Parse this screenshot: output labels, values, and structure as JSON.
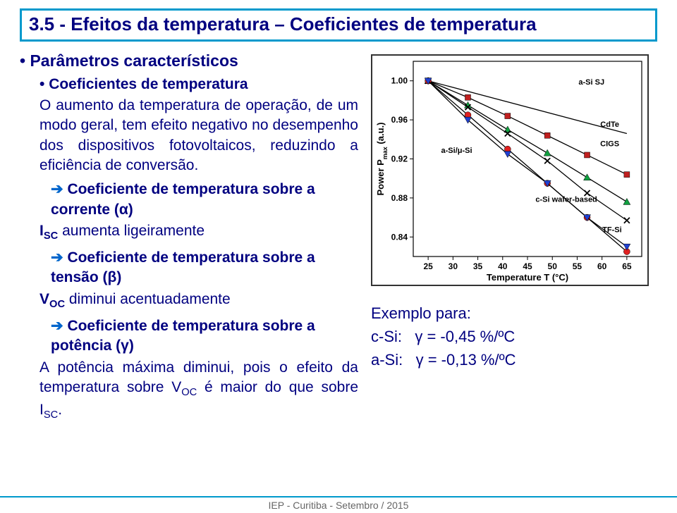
{
  "title": "3.5 - Efeitos da temperatura – Coeficientes de temperatura",
  "bullets": {
    "l1": "Parâmetros característicos",
    "l2": "Coeficientes de temperatura",
    "p1": "O aumento da temperatura de operação, de um modo geral, tem efeito negativo no desempenho dos dispositivos fotovoltaicos, reduzindo a eficiência de conversão.",
    "arrow1": "Coeficiente de temperatura sobre a corrente (α)",
    "sub1_a": "I",
    "sub1_b": "SC",
    "sub1_c": " aumenta ligeiramente",
    "arrow2": "Coeficiente de temperatura sobre a tensão (β)",
    "sub2_a": "V",
    "sub2_b": "OC",
    "sub2_c": " diminui acentuadamente",
    "arrow3": "Coeficiente de temperatura sobre a potência (γ)",
    "sub3": "A potência máxima diminui, pois o efeito da temperatura sobre V",
    "sub3_b": "OC",
    "sub3_c": " é maior do que sobre I",
    "sub3_d": "SC",
    "sub3_e": "."
  },
  "example": {
    "heading": "Exemplo para:",
    "line1_label": "c-Si:",
    "line1_val": "γ = -0,45 %/ºC",
    "line2_label": "a-Si:",
    "line2_val": "γ = -0,13 %/ºC"
  },
  "footer": "IEP  -  Curitiba  -  Setembro / 2015",
  "chart": {
    "xlabel": "Temperature T (°C)",
    "ylabel": "Power Pmax (a.u.)",
    "xlim": [
      22,
      68
    ],
    "ylim": [
      0.82,
      1.02
    ],
    "xticks": [
      25,
      30,
      35,
      40,
      45,
      50,
      55,
      60,
      65
    ],
    "yticks": [
      0.84,
      0.88,
      0.92,
      0.96,
      1.0
    ],
    "tick_fontsize": 12,
    "label_fontsize": 13,
    "background": "#ffffff",
    "axis_color": "#000000",
    "legend_fontsize": 11,
    "series": [
      {
        "name": "a-Si SJ",
        "label_x_frac": 0.78,
        "label_y_frac": 0.12,
        "marker": "none",
        "line_color": "#000000",
        "points": [
          [
            25,
            1.0
          ],
          [
            65,
            0.946
          ]
        ]
      },
      {
        "name": "CdTe",
        "label_x_frac": 0.86,
        "label_y_frac": 0.335,
        "marker": "square",
        "marker_color": "#c02020",
        "line_color": "#000000",
        "points": [
          [
            25,
            1.0
          ],
          [
            33,
            0.983
          ],
          [
            41,
            0.964
          ],
          [
            49,
            0.944
          ],
          [
            57,
            0.924
          ],
          [
            65,
            0.904
          ]
        ]
      },
      {
        "name": "CIGS",
        "label_x_frac": 0.86,
        "label_y_frac": 0.435,
        "marker": "triangle",
        "marker_color": "#10a040",
        "line_color": "#000000",
        "points": [
          [
            25,
            1.0
          ],
          [
            33,
            0.975
          ],
          [
            41,
            0.95
          ],
          [
            49,
            0.926
          ],
          [
            57,
            0.901
          ],
          [
            65,
            0.876
          ]
        ]
      },
      {
        "name": "a-Si/μ-Si",
        "label_x_frac": 0.19,
        "label_y_frac": 0.47,
        "marker": "x",
        "marker_color": "#000000",
        "line_color": "#000000",
        "points": [
          [
            25,
            1.0
          ],
          [
            33,
            0.973
          ],
          [
            41,
            0.946
          ],
          [
            49,
            0.918
          ],
          [
            57,
            0.885
          ],
          [
            65,
            0.857
          ]
        ]
      },
      {
        "name": "c-Si wafer-based",
        "label_x_frac": 0.67,
        "label_y_frac": 0.72,
        "marker": "circle",
        "marker_color": "#e02020",
        "line_color": "#000000",
        "points": [
          [
            25,
            1.0
          ],
          [
            33,
            0.965
          ],
          [
            41,
            0.93
          ],
          [
            49,
            0.895
          ],
          [
            57,
            0.86
          ],
          [
            65,
            0.825
          ]
        ]
      },
      {
        "name": "TF-Si",
        "label_x_frac": 0.87,
        "label_y_frac": 0.875,
        "marker": "inv-triangle",
        "marker_color": "#2040d0",
        "line_color": "#000000",
        "points": [
          [
            25,
            1.0
          ],
          [
            33,
            0.96
          ],
          [
            41,
            0.925
          ],
          [
            49,
            0.895
          ],
          [
            57,
            0.86
          ],
          [
            65,
            0.83
          ]
        ]
      }
    ]
  }
}
